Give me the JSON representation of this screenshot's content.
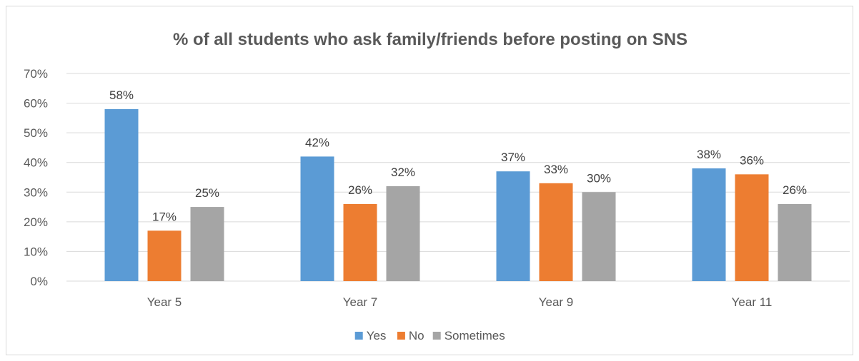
{
  "chart_data": {
    "type": "bar",
    "title": "% of all students who ask family/friends before posting on SNS",
    "categories": [
      "Year 5",
      "Year 7",
      "Year 9",
      "Year 11"
    ],
    "series": [
      {
        "name": "Yes",
        "color": "#5b9bd5",
        "values": [
          58,
          42,
          37,
          38
        ],
        "labels": [
          "58%",
          "42%",
          "37%",
          "38%"
        ]
      },
      {
        "name": "No",
        "color": "#ed7d31",
        "values": [
          17,
          26,
          33,
          36
        ],
        "labels": [
          "17%",
          "26%",
          "33%",
          "36%"
        ]
      },
      {
        "name": "Sometimes",
        "color": "#a5a5a5",
        "values": [
          25,
          32,
          30,
          26
        ],
        "labels": [
          "25%",
          "32%",
          "30%",
          "26%"
        ]
      }
    ],
    "ylim": [
      0,
      70
    ],
    "yticks": [
      "0%",
      "10%",
      "20%",
      "30%",
      "40%",
      "50%",
      "60%",
      "70%"
    ],
    "grid": true,
    "legend_position": "bottom",
    "gridline_color": "#d9d9d9",
    "text_color": "#595959"
  }
}
